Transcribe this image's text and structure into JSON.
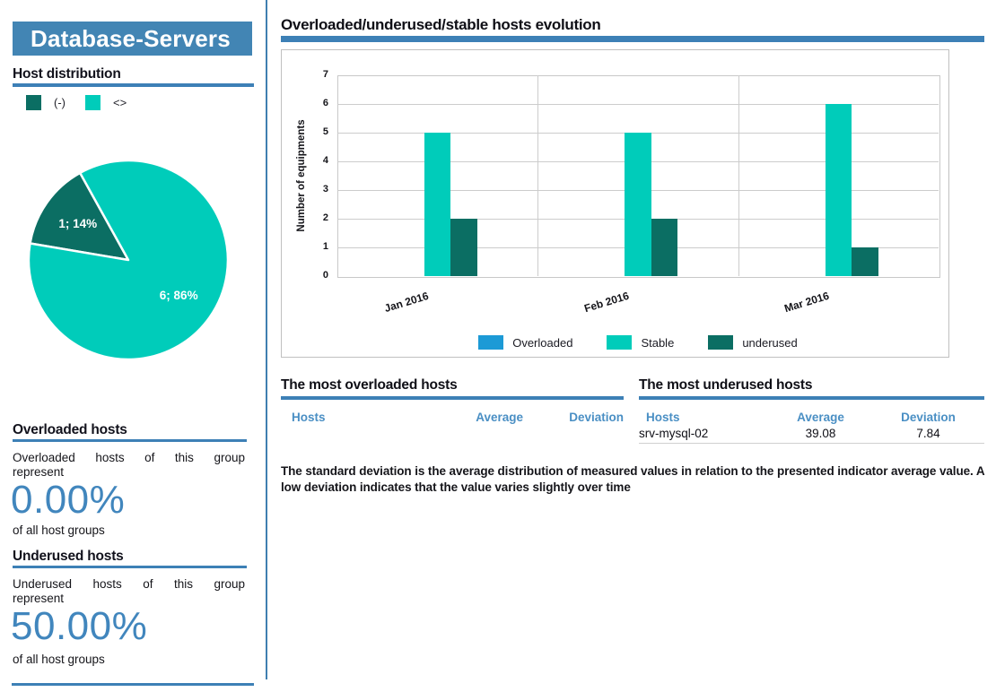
{
  "accent": {
    "blue_bar": "#3d80b6",
    "header_bg": "#4285b4",
    "value_blue": "#4186bd",
    "table_header_blue": "#4a8fc4"
  },
  "sidebar": {
    "title": "Database-Servers",
    "host_distribution_heading": "Host distribution",
    "overloaded": {
      "heading": "Overloaded hosts",
      "intro_line1": "Overloaded hosts of this group",
      "intro_line2": "represent",
      "value": "0.00%",
      "suffix": "of all host groups"
    },
    "underused": {
      "heading": "Underused hosts",
      "intro_line1": "Underused hosts of this group",
      "intro_line2": "represent",
      "value": "50.00%",
      "suffix": "of all host groups"
    }
  },
  "main": {
    "chart_heading": "Overloaded/underused/stable hosts evolution",
    "overloaded_table": {
      "heading": "The most overloaded hosts",
      "columns": [
        "Hosts",
        "Average",
        "Deviation"
      ],
      "rows": []
    },
    "underused_table": {
      "heading": "The most underused hosts",
      "columns": [
        "Hosts",
        "Average",
        "Deviation"
      ],
      "rows": [
        {
          "host": "srv-mysql-02",
          "average": "39.08",
          "deviation": "7.84"
        }
      ]
    },
    "description": "The standard deviation is the average distribution of measured values in relation to the presented indicator average value. A low deviation indicates that the value varies slightly over time"
  },
  "chart_data": [
    {
      "type": "pie",
      "title": "Host distribution",
      "start_angle": 119,
      "legend": [
        {
          "label": "(-)",
          "color": "#0b6e63"
        },
        {
          "label": "<>",
          "color": "#00ccba"
        }
      ],
      "slices": [
        {
          "label": "(-)",
          "value": 1,
          "percent": 14,
          "data_label": "1; 14%",
          "color": "#0b6e63"
        },
        {
          "label": "<>",
          "value": 6,
          "percent": 86,
          "data_label": "6; 86%",
          "color": "#00ccba"
        }
      ]
    },
    {
      "type": "bar",
      "title": "Overloaded/underused/stable hosts evolution",
      "categories": [
        "Jan 2016",
        "Feb 2016",
        "Mar 2016"
      ],
      "series": [
        {
          "name": "Overloaded",
          "color": "#1c9ad6",
          "values": [
            0,
            0,
            0
          ]
        },
        {
          "name": "Stable",
          "color": "#00ccba",
          "values": [
            5,
            5,
            6
          ]
        },
        {
          "name": "underused",
          "color": "#0b6e63",
          "values": [
            2,
            2,
            1
          ]
        }
      ],
      "ylabel": "Number of equipments",
      "ylim": [
        0,
        7
      ],
      "grid": true,
      "legend_position": "bottom"
    }
  ]
}
